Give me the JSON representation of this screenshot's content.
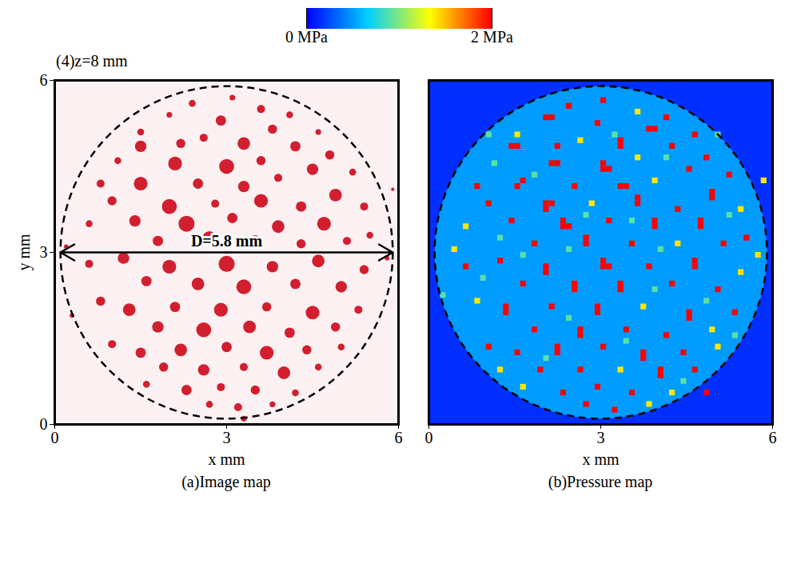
{
  "title": "(4)z=8 mm",
  "chart_data": [
    {
      "type": "scatter",
      "title": "(a)Image map",
      "x_label": "x mm",
      "y_label": "y mm",
      "xlim": [
        0,
        6
      ],
      "ylim": [
        0,
        6
      ],
      "xticks": [
        0,
        3,
        6
      ],
      "yticks": [
        0,
        3,
        6
      ],
      "color": "#d21f2f",
      "line_style": "dashed",
      "circle": {
        "center": [
          3,
          3
        ],
        "diameter": 5.8,
        "label": "D=5.8 mm"
      },
      "spots": [
        [
          2.4,
          5.6,
          0.06
        ],
        [
          3.1,
          5.7,
          0.05
        ],
        [
          3.6,
          5.5,
          0.07
        ],
        [
          2.0,
          5.4,
          0.05
        ],
        [
          4.1,
          5.4,
          0.06
        ],
        [
          2.9,
          5.3,
          0.09
        ],
        [
          3.8,
          5.15,
          0.08
        ],
        [
          1.5,
          5.1,
          0.06
        ],
        [
          4.6,
          5.1,
          0.05
        ],
        [
          1.5,
          4.85,
          0.1
        ],
        [
          2.2,
          4.9,
          0.08
        ],
        [
          2.6,
          5.0,
          0.07
        ],
        [
          3.3,
          4.9,
          0.11
        ],
        [
          4.2,
          4.85,
          0.09
        ],
        [
          4.8,
          4.7,
          0.08
        ],
        [
          1.1,
          4.6,
          0.06
        ],
        [
          2.1,
          4.55,
          0.12
        ],
        [
          3.0,
          4.5,
          0.13
        ],
        [
          3.6,
          4.6,
          0.08
        ],
        [
          4.5,
          4.45,
          0.1
        ],
        [
          5.2,
          4.4,
          0.06
        ],
        [
          0.8,
          4.2,
          0.07
        ],
        [
          1.5,
          4.2,
          0.12
        ],
        [
          2.5,
          4.2,
          0.09
        ],
        [
          3.3,
          4.15,
          0.1
        ],
        [
          3.9,
          4.3,
          0.07
        ],
        [
          4.9,
          4.0,
          0.11
        ],
        [
          1.0,
          3.9,
          0.08
        ],
        [
          2.0,
          3.8,
          0.13
        ],
        [
          2.8,
          3.85,
          0.07
        ],
        [
          3.6,
          3.9,
          0.12
        ],
        [
          4.3,
          3.8,
          0.09
        ],
        [
          5.4,
          3.8,
          0.07
        ],
        [
          0.6,
          3.5,
          0.06
        ],
        [
          1.4,
          3.55,
          0.1
        ],
        [
          2.3,
          3.5,
          0.14
        ],
        [
          3.1,
          3.6,
          0.09
        ],
        [
          3.9,
          3.45,
          0.11
        ],
        [
          4.7,
          3.5,
          0.12
        ],
        [
          5.5,
          3.3,
          0.06
        ],
        [
          1.8,
          3.2,
          0.09
        ],
        [
          2.7,
          3.25,
          0.12
        ],
        [
          3.5,
          3.2,
          0.1
        ],
        [
          4.3,
          3.15,
          0.08
        ],
        [
          5.1,
          3.2,
          0.07
        ],
        [
          0.6,
          2.8,
          0.07
        ],
        [
          1.2,
          2.9,
          0.1
        ],
        [
          2.0,
          2.75,
          0.12
        ],
        [
          3.0,
          2.8,
          0.14
        ],
        [
          3.8,
          2.75,
          0.1
        ],
        [
          4.6,
          2.85,
          0.11
        ],
        [
          5.4,
          2.7,
          0.08
        ],
        [
          1.6,
          2.5,
          0.09
        ],
        [
          2.5,
          2.45,
          0.11
        ],
        [
          3.3,
          2.4,
          0.13
        ],
        [
          4.2,
          2.45,
          0.09
        ],
        [
          5.0,
          2.4,
          0.1
        ],
        [
          0.8,
          2.15,
          0.08
        ],
        [
          1.3,
          2.0,
          0.11
        ],
        [
          2.1,
          2.05,
          0.09
        ],
        [
          2.9,
          2.0,
          0.12
        ],
        [
          3.7,
          2.05,
          0.08
        ],
        [
          4.5,
          1.95,
          0.12
        ],
        [
          5.3,
          2.0,
          0.07
        ],
        [
          1.8,
          1.7,
          0.1
        ],
        [
          2.6,
          1.65,
          0.13
        ],
        [
          3.4,
          1.7,
          0.11
        ],
        [
          4.1,
          1.6,
          0.09
        ],
        [
          4.9,
          1.7,
          0.08
        ],
        [
          1.0,
          1.4,
          0.07
        ],
        [
          1.5,
          1.25,
          0.09
        ],
        [
          2.2,
          1.3,
          0.11
        ],
        [
          3.0,
          1.35,
          0.09
        ],
        [
          3.7,
          1.25,
          0.12
        ],
        [
          4.4,
          1.3,
          0.08
        ],
        [
          5.0,
          1.35,
          0.06
        ],
        [
          1.9,
          1.0,
          0.08
        ],
        [
          2.6,
          0.95,
          0.1
        ],
        [
          3.3,
          1.0,
          0.07
        ],
        [
          4.0,
          0.9,
          0.11
        ],
        [
          4.6,
          1.0,
          0.06
        ],
        [
          1.6,
          0.7,
          0.06
        ],
        [
          2.3,
          0.6,
          0.09
        ],
        [
          2.9,
          0.65,
          0.07
        ],
        [
          3.5,
          0.6,
          0.08
        ],
        [
          4.2,
          0.55,
          0.06
        ],
        [
          2.7,
          0.35,
          0.06
        ],
        [
          3.2,
          0.3,
          0.07
        ],
        [
          3.8,
          0.35,
          0.05
        ],
        [
          3.3,
          0.1,
          0.05
        ],
        [
          0.2,
          3.1,
          0.04
        ],
        [
          5.8,
          2.9,
          0.04
        ],
        [
          0.3,
          1.9,
          0.04
        ],
        [
          5.9,
          4.1,
          0.03
        ]
      ]
    },
    {
      "type": "heatmap",
      "title": "(b)Pressure map",
      "x_label": "x mm",
      "xlim": [
        0,
        6
      ],
      "ylim": [
        0,
        6
      ],
      "xticks": [
        0,
        3,
        6
      ],
      "tick_labels": "x",
      "line_style": "dashed",
      "circle": {
        "center": [
          3,
          3
        ],
        "diameter": 5.8
      },
      "pressure_outside": 0.15,
      "pressure_inside": 0.5,
      "cell_size": 0.1,
      "colorbar": {
        "range": [
          0,
          2
        ],
        "ticks": [
          {
            "value": 0,
            "label": "0 MPa"
          },
          {
            "value": 2,
            "label": "2 MPa"
          }
        ],
        "colors": [
          "#0000ff",
          "#00d0ff",
          "#ffff00",
          "#ff0000"
        ]
      },
      "cells": [
        [
          2.4,
          5.5,
          2
        ],
        [
          3.0,
          5.6,
          2
        ],
        [
          3.6,
          5.4,
          1.4
        ],
        [
          2.0,
          5.3,
          2
        ],
        [
          2.1,
          5.3,
          2
        ],
        [
          4.1,
          5.3,
          2
        ],
        [
          2.9,
          5.2,
          2
        ],
        [
          3.8,
          5.1,
          2
        ],
        [
          3.9,
          5.1,
          2
        ],
        [
          1.5,
          5.0,
          1.4
        ],
        [
          4.6,
          5.0,
          2
        ],
        [
          1.4,
          4.8,
          2
        ],
        [
          1.5,
          4.8,
          2
        ],
        [
          2.2,
          4.8,
          2
        ],
        [
          2.6,
          4.9,
          1.4
        ],
        [
          3.3,
          4.8,
          2
        ],
        [
          3.3,
          4.9,
          2
        ],
        [
          4.2,
          4.8,
          2
        ],
        [
          4.8,
          4.6,
          2
        ],
        [
          1.1,
          4.5,
          0.9
        ],
        [
          2.1,
          4.5,
          2
        ],
        [
          2.2,
          4.5,
          2
        ],
        [
          3.0,
          4.4,
          2
        ],
        [
          3.0,
          4.5,
          2
        ],
        [
          3.1,
          4.4,
          2
        ],
        [
          3.6,
          4.6,
          1.4
        ],
        [
          4.5,
          4.4,
          2
        ],
        [
          5.2,
          4.3,
          2
        ],
        [
          0.8,
          4.1,
          2
        ],
        [
          1.5,
          4.1,
          2
        ],
        [
          1.6,
          4.2,
          2
        ],
        [
          2.5,
          4.1,
          2
        ],
        [
          3.3,
          4.1,
          2
        ],
        [
          3.4,
          4.1,
          2
        ],
        [
          3.9,
          4.2,
          1.4
        ],
        [
          4.9,
          4.0,
          2
        ],
        [
          4.9,
          3.9,
          2
        ],
        [
          1.0,
          3.8,
          2
        ],
        [
          2.0,
          3.7,
          2
        ],
        [
          2.0,
          3.8,
          2
        ],
        [
          2.1,
          3.8,
          2
        ],
        [
          2.8,
          3.8,
          1.4
        ],
        [
          3.6,
          3.8,
          2
        ],
        [
          3.6,
          3.9,
          2
        ],
        [
          4.3,
          3.7,
          2
        ],
        [
          5.4,
          3.7,
          1.4
        ],
        [
          0.6,
          3.4,
          1.4
        ],
        [
          1.4,
          3.5,
          2
        ],
        [
          2.3,
          3.4,
          2
        ],
        [
          2.3,
          3.5,
          2
        ],
        [
          2.4,
          3.4,
          2
        ],
        [
          3.1,
          3.5,
          2
        ],
        [
          3.9,
          3.4,
          2
        ],
        [
          3.9,
          3.5,
          2
        ],
        [
          4.7,
          3.4,
          2
        ],
        [
          4.7,
          3.5,
          2
        ],
        [
          5.5,
          3.2,
          2
        ],
        [
          1.8,
          3.1,
          2
        ],
        [
          2.7,
          3.2,
          2
        ],
        [
          2.7,
          3.1,
          2
        ],
        [
          3.5,
          3.1,
          2
        ],
        [
          4.3,
          3.1,
          1.4
        ],
        [
          5.1,
          3.1,
          2
        ],
        [
          0.6,
          2.7,
          2
        ],
        [
          1.2,
          2.8,
          2
        ],
        [
          2.0,
          2.7,
          2
        ],
        [
          2.0,
          2.6,
          2
        ],
        [
          3.0,
          2.7,
          2
        ],
        [
          3.0,
          2.8,
          2
        ],
        [
          3.1,
          2.7,
          2
        ],
        [
          3.8,
          2.7,
          2
        ],
        [
          4.6,
          2.8,
          2
        ],
        [
          4.6,
          2.7,
          2
        ],
        [
          5.4,
          2.6,
          1.4
        ],
        [
          1.6,
          2.4,
          2
        ],
        [
          2.5,
          2.4,
          2
        ],
        [
          2.5,
          2.3,
          2
        ],
        [
          3.3,
          2.3,
          2
        ],
        [
          3.3,
          2.4,
          2
        ],
        [
          4.2,
          2.4,
          2
        ],
        [
          5.0,
          2.3,
          2
        ],
        [
          0.8,
          2.1,
          1.4
        ],
        [
          1.3,
          1.9,
          2
        ],
        [
          1.3,
          2.0,
          2
        ],
        [
          2.1,
          2.0,
          2
        ],
        [
          2.9,
          1.9,
          2
        ],
        [
          2.9,
          2.0,
          2
        ],
        [
          3.7,
          2.0,
          1.4
        ],
        [
          4.5,
          1.9,
          2
        ],
        [
          4.5,
          1.8,
          2
        ],
        [
          5.3,
          1.9,
          2
        ],
        [
          1.8,
          1.6,
          2
        ],
        [
          2.6,
          1.6,
          2
        ],
        [
          2.6,
          1.5,
          2
        ],
        [
          3.4,
          1.6,
          2
        ],
        [
          4.1,
          1.5,
          2
        ],
        [
          4.9,
          1.6,
          1.4
        ],
        [
          1.0,
          1.3,
          2
        ],
        [
          1.5,
          1.2,
          2
        ],
        [
          2.2,
          1.2,
          2
        ],
        [
          2.2,
          1.3,
          2
        ],
        [
          3.0,
          1.3,
          2
        ],
        [
          3.7,
          1.2,
          2
        ],
        [
          3.7,
          1.1,
          2
        ],
        [
          4.4,
          1.2,
          2
        ],
        [
          5.0,
          1.3,
          1.4
        ],
        [
          1.9,
          0.9,
          2
        ],
        [
          2.6,
          0.9,
          2
        ],
        [
          3.3,
          0.9,
          1.4
        ],
        [
          4.0,
          0.8,
          2
        ],
        [
          4.0,
          0.9,
          2
        ],
        [
          4.6,
          0.9,
          2
        ],
        [
          1.6,
          0.6,
          1.4
        ],
        [
          2.3,
          0.5,
          2
        ],
        [
          2.9,
          0.6,
          2
        ],
        [
          3.5,
          0.5,
          2
        ],
        [
          4.2,
          0.5,
          1.4
        ],
        [
          2.7,
          0.3,
          2
        ],
        [
          3.2,
          0.2,
          2
        ],
        [
          3.8,
          0.3,
          1.4
        ],
        [
          4.8,
          0.5,
          2
        ],
        [
          1.2,
          0.9,
          1.4
        ],
        [
          0.4,
          3.0,
          1.4
        ],
        [
          5.7,
          2.9,
          1.4
        ],
        [
          5.8,
          4.2,
          1.4
        ],
        [
          0.2,
          2.2,
          0.9
        ],
        [
          1.0,
          5.0,
          0.9
        ],
        [
          5.0,
          5.0,
          0.9
        ],
        [
          2.7,
          3.6,
          0.9
        ],
        [
          3.5,
          3.5,
          0.9
        ],
        [
          4.0,
          3.0,
          0.9
        ],
        [
          1.8,
          4.3,
          0.9
        ],
        [
          2.4,
          1.8,
          0.9
        ],
        [
          3.9,
          2.3,
          0.9
        ],
        [
          4.1,
          4.6,
          0.9
        ],
        [
          1.6,
          2.9,
          0.9
        ],
        [
          3.2,
          5.0,
          0.9
        ],
        [
          2.4,
          3.0,
          0.9
        ],
        [
          4.8,
          2.1,
          0.9
        ],
        [
          3.4,
          1.4,
          0.9
        ],
        [
          1.2,
          3.2,
          0.9
        ],
        [
          5.2,
          3.6,
          0.9
        ],
        [
          2.0,
          1.1,
          0.9
        ],
        [
          4.4,
          0.7,
          0.9
        ],
        [
          0.9,
          2.5,
          0.9
        ],
        [
          5.3,
          1.5,
          0.9
        ]
      ]
    }
  ]
}
